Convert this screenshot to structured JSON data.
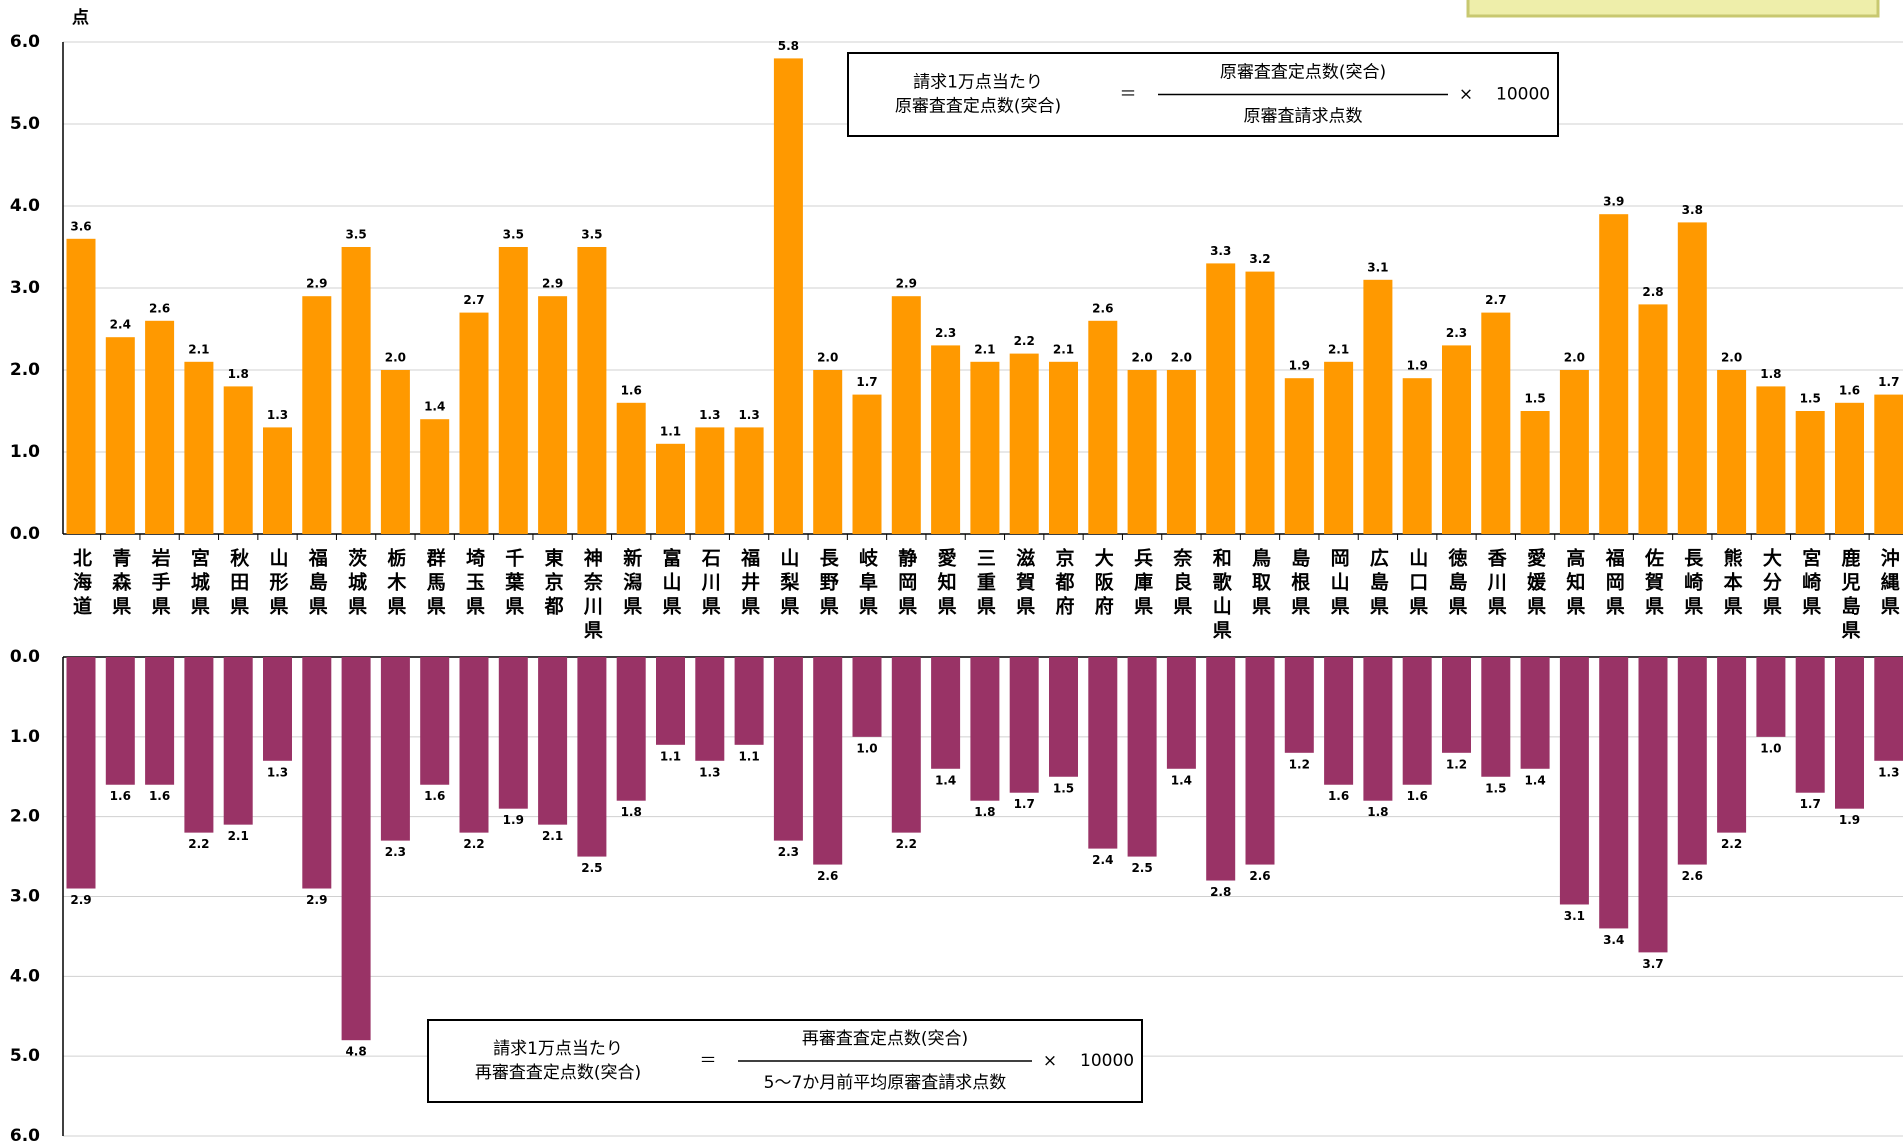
{
  "chart_data": [
    {
      "type": "bar",
      "y_label": "点",
      "color": "#FF9900",
      "categories": [
        "北海道",
        "青森県",
        "岩手県",
        "宮城県",
        "秋田県",
        "山形県",
        "福島県",
        "茨城県",
        "栃木県",
        "群馬県",
        "埼玉県",
        "千葉県",
        "東京都",
        "神奈川県",
        "新潟県",
        "富山県",
        "石川県",
        "福井県",
        "山梨県",
        "長野県",
        "岐阜県",
        "静岡県",
        "愛知県",
        "三重県",
        "滋賀県",
        "京都府",
        "大阪府",
        "兵庫県",
        "奈良県",
        "和歌山県",
        "鳥取県",
        "島根県",
        "岡山県",
        "広島県",
        "山口県",
        "徳島県",
        "香川県",
        "愛媛県",
        "高知県",
        "福岡県",
        "佐賀県",
        "長崎県",
        "熊本県",
        "大分県",
        "宮崎県",
        "鹿児島県",
        "沖縄県"
      ],
      "values": [
        3.6,
        2.4,
        2.6,
        2.1,
        1.8,
        1.3,
        2.9,
        3.5,
        2.0,
        1.4,
        2.7,
        3.5,
        2.9,
        3.5,
        1.6,
        1.1,
        1.3,
        1.3,
        5.8,
        2.0,
        1.7,
        2.9,
        2.3,
        2.1,
        2.2,
        2.1,
        2.6,
        2.0,
        2.0,
        3.3,
        3.2,
        1.9,
        2.1,
        3.1,
        1.9,
        2.3,
        2.7,
        1.5,
        2.0,
        3.9,
        2.8,
        3.8,
        2.0,
        1.8,
        1.5,
        1.6,
        1.7
      ],
      "value_labels": [
        "3.6",
        "2.4",
        "2.6",
        "2.1",
        "1.8",
        "1.3",
        "2.9",
        "3.5",
        "2.0",
        "1.4",
        "2.7",
        "3.5",
        "2.9",
        "3.5",
        "1.6",
        "1.1",
        "1.3",
        "1.3",
        "5.8",
        "2.0",
        "1.7",
        "2.9",
        "2.3",
        "2.1",
        "2.2",
        "2.1",
        "2.6",
        "2.0",
        "2.0",
        "3.3",
        "3.2",
        "1.9",
        "2.1",
        "3.1",
        "1.9",
        "2.3",
        "2.7",
        "1.5",
        "2.0",
        "3.9",
        "2.8",
        "3.8",
        "2.0",
        "1.8",
        "1.5",
        "1.6",
        "1.7"
      ],
      "ylim": [
        0,
        6
      ],
      "inverted": false,
      "grid": true,
      "yticks": [
        {
          "value": 0,
          "label": "0.0"
        },
        {
          "value": 1,
          "label": "1.0"
        },
        {
          "value": 2,
          "label": "2.0"
        },
        {
          "value": 3,
          "label": "3.0"
        },
        {
          "value": 4,
          "label": "4.0"
        },
        {
          "value": 5,
          "label": "5.0"
        },
        {
          "value": 6,
          "label": "6.0"
        }
      ],
      "formula": {
        "lhs": [
          "請求1万点当たり",
          "原審査査定点数(突合)"
        ],
        "eq": "＝",
        "numerator": "原審査査定点数(突合)",
        "denominator": "原審査請求点数",
        "times": "×",
        "factor": "10000"
      }
    },
    {
      "type": "bar",
      "color": "#993366",
      "values": [
        2.9,
        1.6,
        1.6,
        2.2,
        2.1,
        1.3,
        2.9,
        4.8,
        2.3,
        1.6,
        2.2,
        1.9,
        2.1,
        2.5,
        1.8,
        1.1,
        1.3,
        1.1,
        2.3,
        2.6,
        1.0,
        2.2,
        1.4,
        1.8,
        1.7,
        1.5,
        2.4,
        2.5,
        1.4,
        2.8,
        2.6,
        1.2,
        1.6,
        1.8,
        1.6,
        1.2,
        1.5,
        1.4,
        3.1,
        3.4,
        3.7,
        2.6,
        2.2,
        1.0,
        1.7,
        1.9,
        1.3
      ],
      "value_labels": [
        "2.9",
        "1.6",
        "1.6",
        "2.2",
        "2.1",
        "1.3",
        "2.9",
        "4.8",
        "2.3",
        "1.6",
        "2.2",
        "1.9",
        "2.1",
        "2.5",
        "1.8",
        "1.1",
        "1.3",
        "1.1",
        "2.3",
        "2.6",
        "1.0",
        "2.2",
        "1.4",
        "1.8",
        "1.7",
        "1.5",
        "2.4",
        "2.5",
        "1.4",
        "2.8",
        "2.6",
        "1.2",
        "1.6",
        "1.8",
        "1.6",
        "1.2",
        "1.5",
        "1.4",
        "3.1",
        "3.4",
        "3.7",
        "2.6",
        "2.2",
        "1.0",
        "1.7",
        "1.9",
        "1.3"
      ],
      "ylim": [
        0,
        6
      ],
      "inverted": true,
      "grid": true,
      "yticks": [
        {
          "value": 0,
          "label": "0.0"
        },
        {
          "value": 1,
          "label": "1.0"
        },
        {
          "value": 2,
          "label": "2.0"
        },
        {
          "value": 3,
          "label": "3.0"
        },
        {
          "value": 4,
          "label": "4.0"
        },
        {
          "value": 5,
          "label": "5.0"
        },
        {
          "value": 6,
          "label": "6.0"
        }
      ],
      "formula": {
        "lhs": [
          "請求1万点当たり",
          "再審査査定点数(突合)"
        ],
        "eq": "＝",
        "numerator": "再審査査定点数(突合)",
        "denominator": "5～7か月前平均原審査請求点数",
        "times": "×",
        "factor": "10000"
      }
    }
  ]
}
